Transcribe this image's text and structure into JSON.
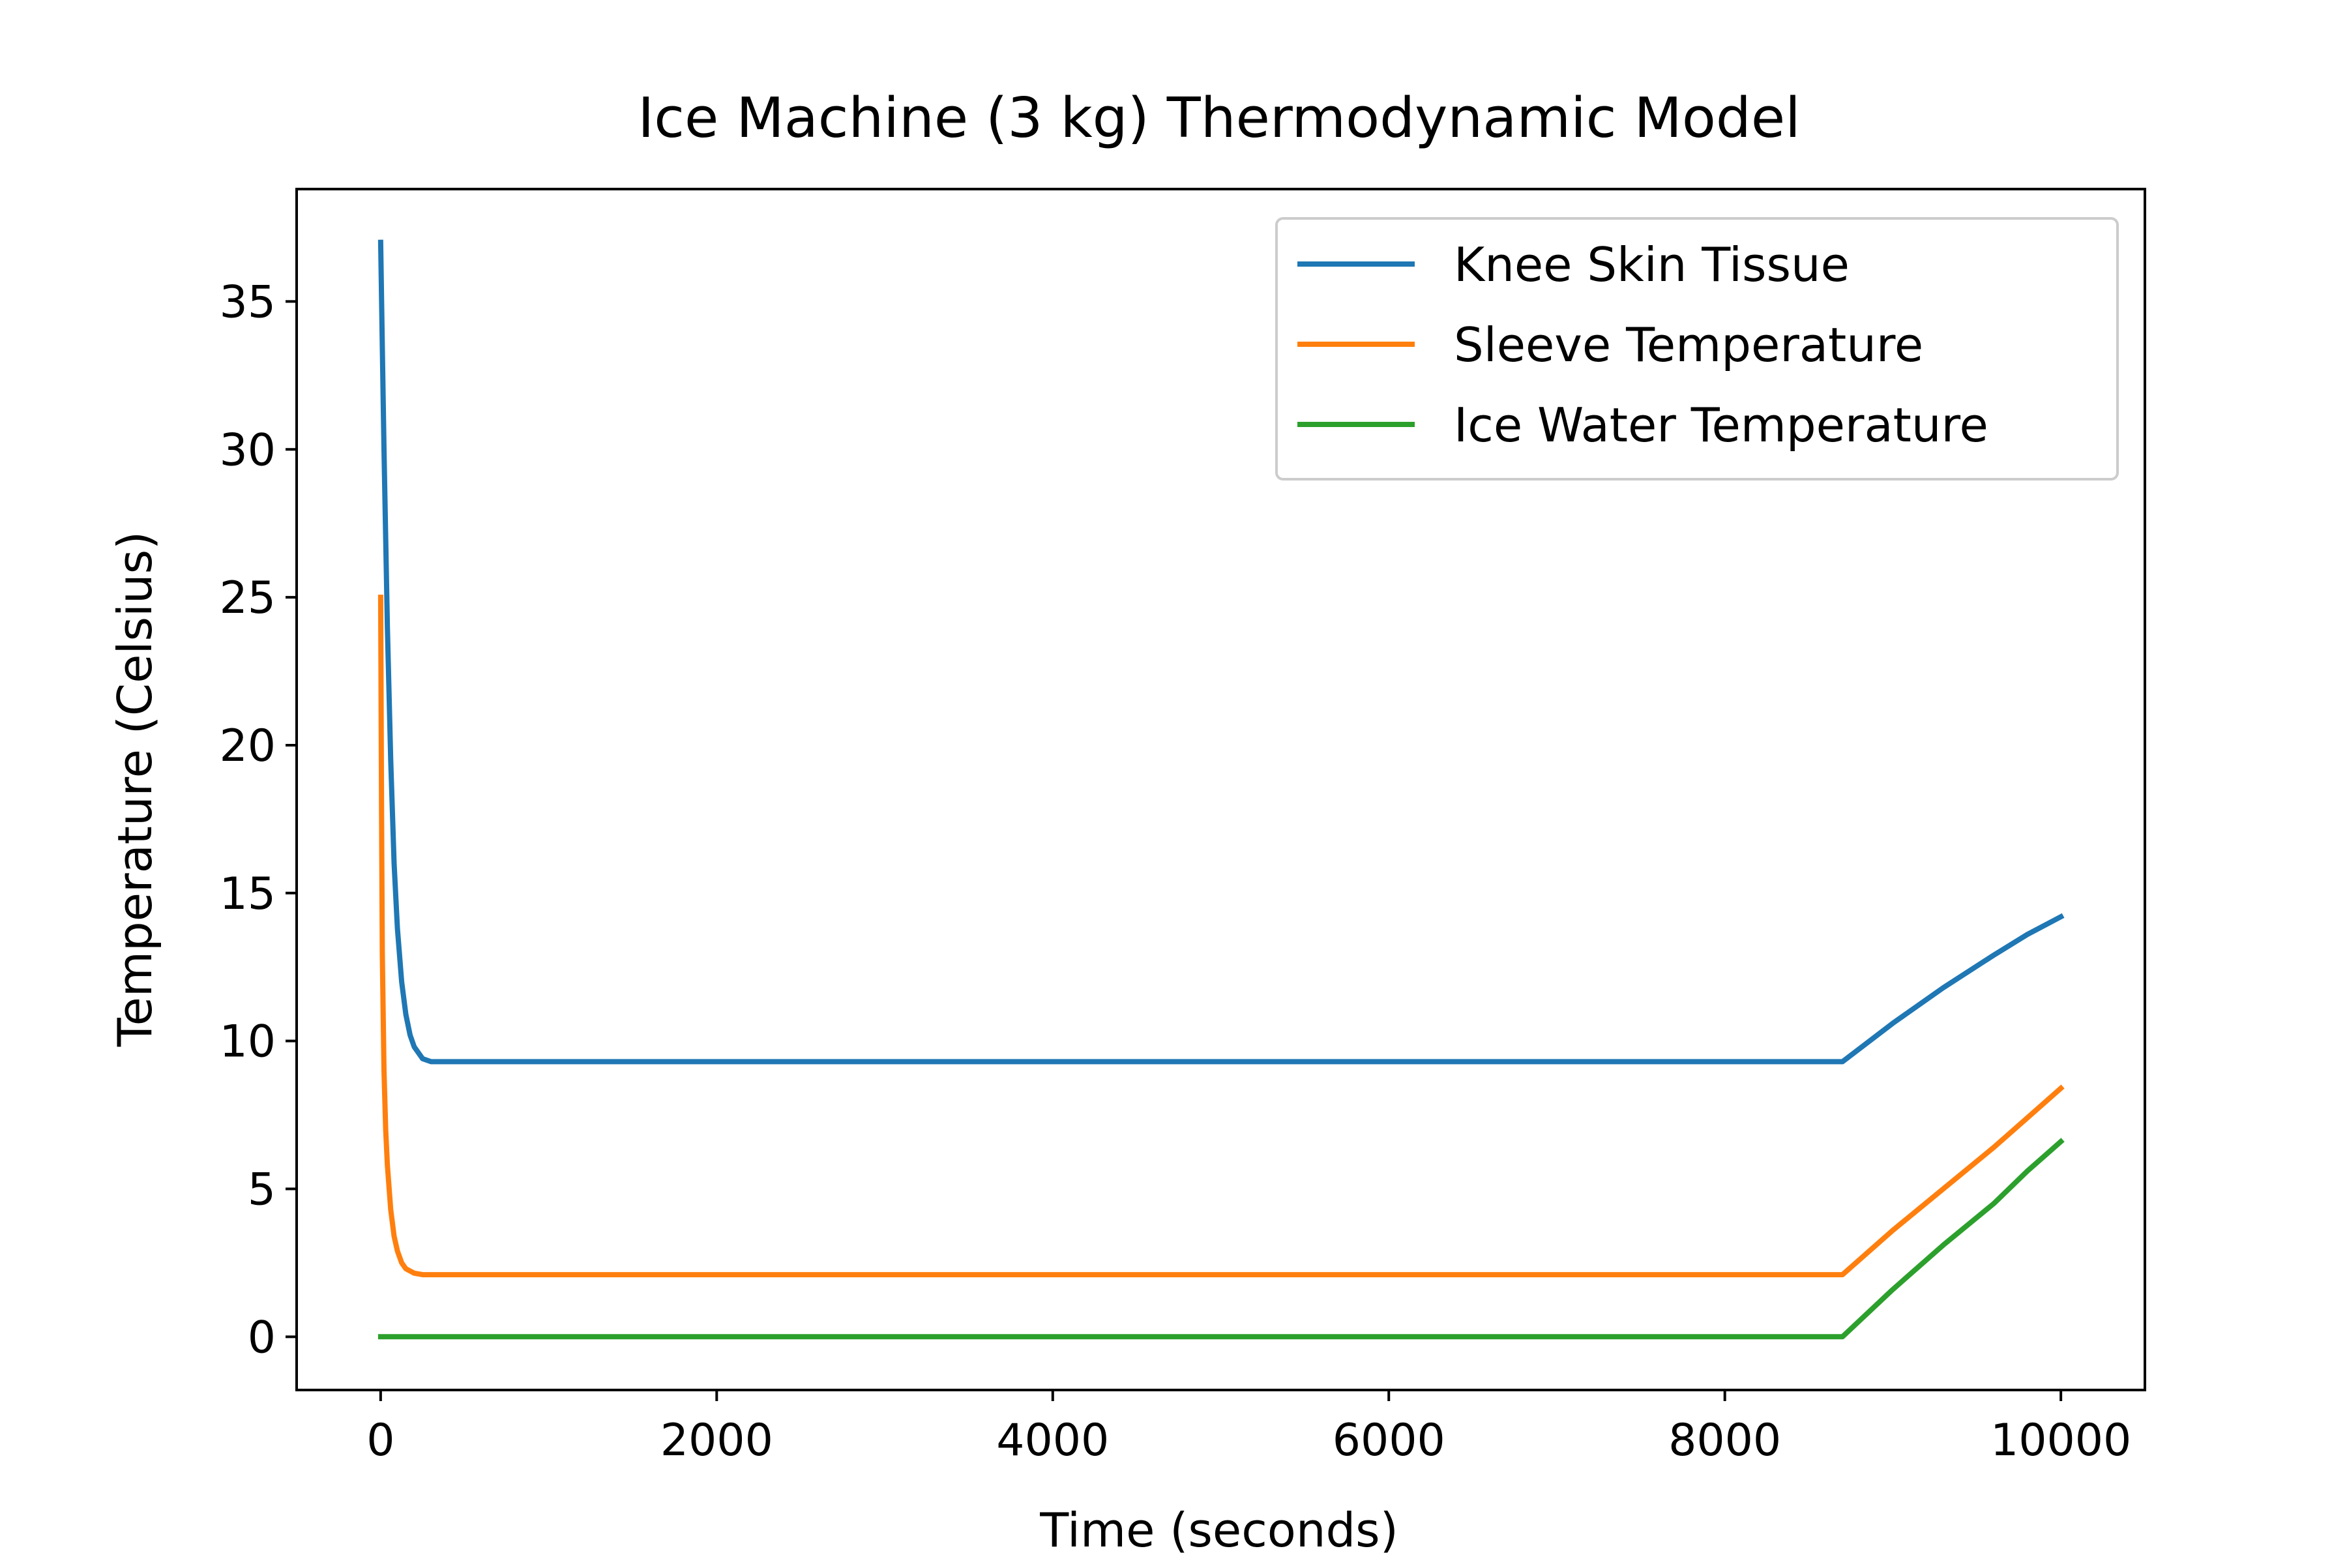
{
  "chart_data": {
    "type": "line",
    "title": "Ice Machine (3 kg) Thermodynamic Model",
    "xlabel": "Time (seconds)",
    "ylabel": "Temperature (Celsius)",
    "xlim": [
      -500,
      10500
    ],
    "ylim": [
      -1.8,
      38.8
    ],
    "xticks": [
      0,
      2000,
      4000,
      6000,
      8000,
      10000
    ],
    "xtick_labels": [
      "0",
      "2000",
      "4000",
      "6000",
      "8000",
      "10000"
    ],
    "yticks": [
      0,
      5,
      10,
      15,
      20,
      25,
      30,
      35
    ],
    "ytick_labels": [
      "0",
      "5",
      "10",
      "15",
      "20",
      "25",
      "30",
      "35"
    ],
    "grid": false,
    "legend_position": "top-right",
    "series": [
      {
        "name": "Knee Skin Tissue",
        "color": "#1f77b4",
        "x": [
          0,
          10,
          20,
          40,
          60,
          80,
          100,
          125,
          150,
          175,
          200,
          250,
          300,
          350,
          400,
          1000,
          3000,
          5000,
          7000,
          8700,
          9000,
          9300,
          9600,
          9800,
          10000
        ],
        "y": [
          37.0,
          33.5,
          30.0,
          24.0,
          19.5,
          16.0,
          13.8,
          12.0,
          10.9,
          10.2,
          9.8,
          9.4,
          9.3,
          9.3,
          9.3,
          9.3,
          9.3,
          9.3,
          9.3,
          9.3,
          10.6,
          11.8,
          12.9,
          13.6,
          14.2
        ]
      },
      {
        "name": "Sleeve Temperature",
        "color": "#ff7f0e",
        "x": [
          0,
          5,
          10,
          20,
          30,
          40,
          60,
          80,
          100,
          125,
          150,
          200,
          250,
          300,
          400,
          1000,
          3000,
          5000,
          7000,
          8700,
          9000,
          9300,
          9600,
          9800,
          10000
        ],
        "y": [
          25.0,
          18.0,
          13.0,
          9.0,
          7.0,
          5.8,
          4.3,
          3.4,
          2.9,
          2.5,
          2.3,
          2.15,
          2.1,
          2.1,
          2.1,
          2.1,
          2.1,
          2.1,
          2.1,
          2.1,
          3.6,
          5.0,
          6.4,
          7.4,
          8.4
        ]
      },
      {
        "name": "Ice Water Temperature",
        "color": "#2ca02c",
        "x": [
          0,
          1000,
          3000,
          5000,
          7000,
          8700,
          9000,
          9300,
          9600,
          9800,
          10000
        ],
        "y": [
          0.0,
          0.0,
          0.0,
          0.0,
          0.0,
          0.0,
          1.6,
          3.1,
          4.5,
          5.6,
          6.6
        ]
      }
    ]
  }
}
